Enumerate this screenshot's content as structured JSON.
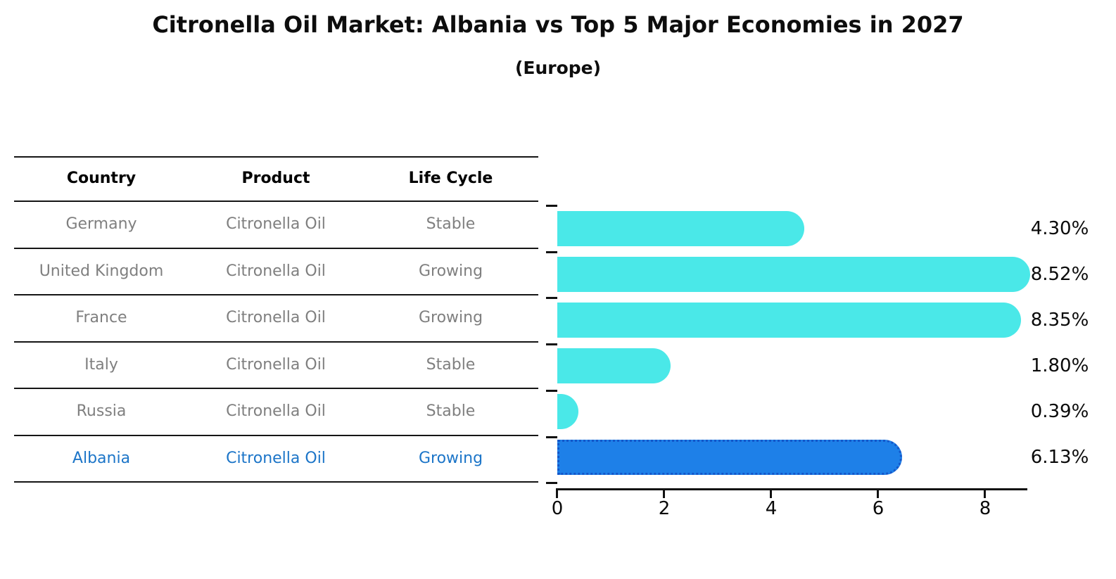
{
  "title": "Citronella Oil Market: Albania vs Top 5 Major Economies in 2027",
  "subtitle": "(Europe)",
  "table": {
    "headers": [
      "Country",
      "Product",
      "Life Cycle"
    ],
    "rows": [
      {
        "country": "Germany",
        "product": "Citronella Oil",
        "life_cycle": "Stable",
        "highlighted": false
      },
      {
        "country": "United Kingdom",
        "product": "Citronella Oil",
        "life_cycle": "Growing",
        "highlighted": false
      },
      {
        "country": "France",
        "product": "Citronella Oil",
        "life_cycle": "Growing",
        "highlighted": false
      },
      {
        "country": "Italy",
        "product": "Citronella Oil",
        "life_cycle": "Stable",
        "highlighted": false
      },
      {
        "country": "Russia",
        "product": "Citronella Oil",
        "life_cycle": "Stable",
        "highlighted": false
      },
      {
        "country": "Albania",
        "product": "Citronella Oil",
        "life_cycle": "Growing",
        "highlighted": true
      }
    ]
  },
  "chart_data": {
    "type": "bar",
    "orientation": "horizontal",
    "categories": [
      "Germany",
      "United Kingdom",
      "France",
      "Italy",
      "Russia",
      "Albania"
    ],
    "values": [
      4.3,
      8.52,
      8.35,
      1.8,
      0.39,
      6.13
    ],
    "value_labels": [
      "4.30%",
      "8.52%",
      "8.35%",
      "1.80%",
      "0.39%",
      "6.13%"
    ],
    "title": "Citronella Oil Market: Albania vs Top 5 Major Economies in 2027",
    "subtitle": "(Europe)",
    "xlabel": "",
    "ylabel": "",
    "xlim": [
      0,
      8.8
    ],
    "x_ticks": [
      0,
      2,
      4,
      6,
      8
    ],
    "grid": false,
    "legend": false,
    "bar_color": "#4AE8E8",
    "highlight_index": 5,
    "highlight_color": "#1E80E8",
    "highlight_border": "#1457C9"
  },
  "colors": {
    "row_text": "#7F7F7F",
    "header_text": "#000000",
    "highlight_text": "#1C75C8",
    "axis": "#111111",
    "background": "#FFFFFF"
  }
}
